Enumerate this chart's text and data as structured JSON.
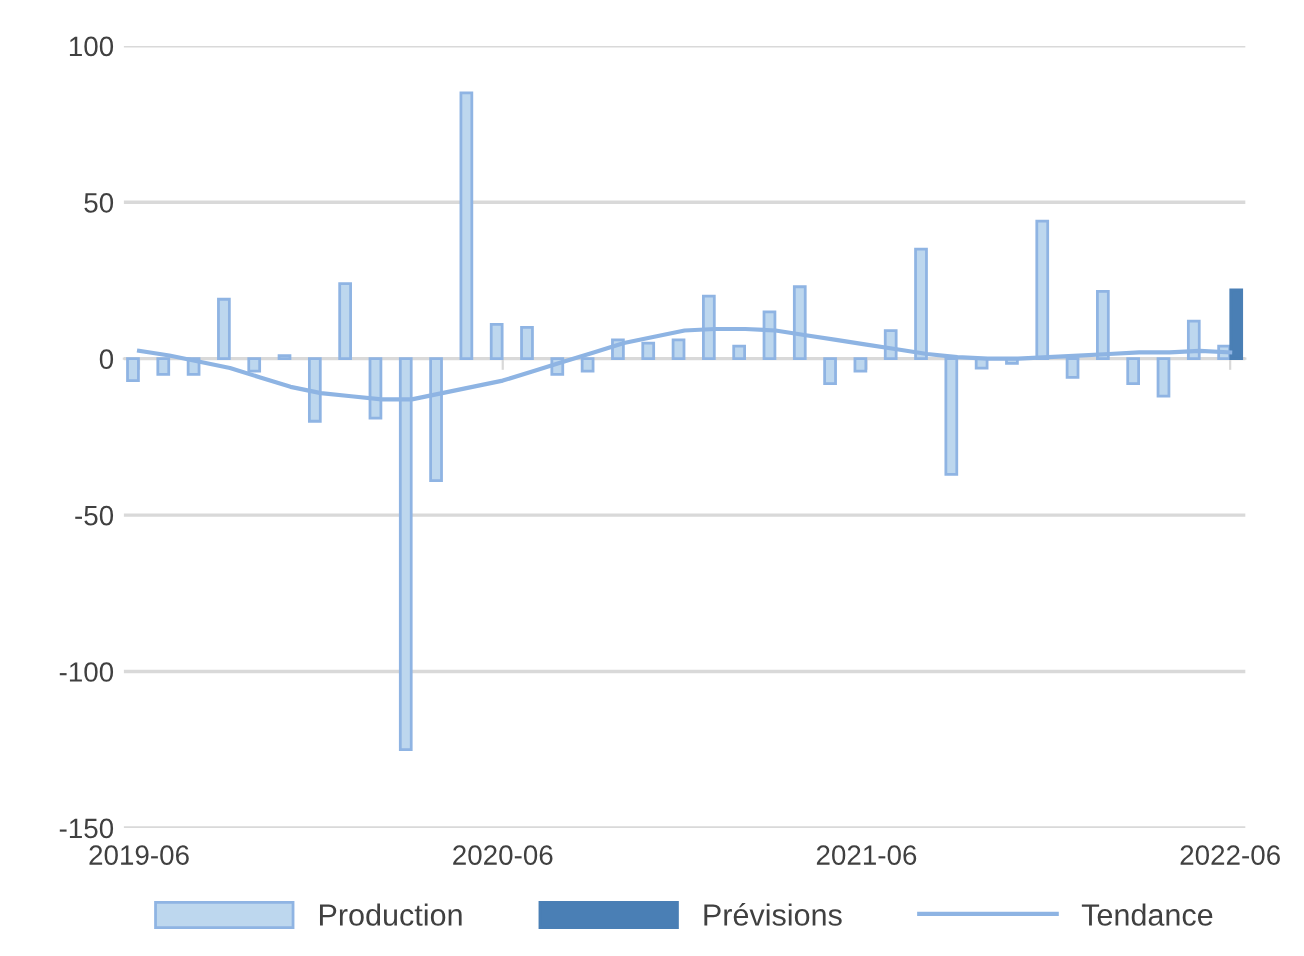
{
  "chart_data": {
    "type": "bar",
    "categories": [
      "2019-06",
      null,
      null,
      null,
      null,
      null,
      null,
      null,
      null,
      null,
      null,
      null,
      "2020-06",
      null,
      null,
      null,
      null,
      null,
      null,
      null,
      null,
      null,
      null,
      null,
      "2021-06",
      null,
      null,
      null,
      null,
      null,
      null,
      null,
      null,
      null,
      null,
      null,
      "2022-06"
    ],
    "series": [
      {
        "name": "Production",
        "color": "#bdd7ee",
        "values": [
          -7,
          -5,
          -5,
          19,
          -4,
          1,
          -20,
          24,
          -19,
          -125,
          -39,
          85,
          11,
          10,
          -5,
          -4,
          6,
          5,
          6,
          20,
          4,
          15,
          23,
          -8,
          -4,
          9,
          35,
          -37,
          -3,
          -1.5,
          44,
          -6,
          21.5,
          -8,
          -12,
          12,
          4
        ]
      },
      {
        "name": "Prévisions",
        "color": "#4a7fb5",
        "values": [
          null,
          null,
          null,
          null,
          null,
          null,
          null,
          null,
          null,
          null,
          null,
          null,
          null,
          null,
          null,
          null,
          null,
          null,
          null,
          null,
          null,
          null,
          null,
          null,
          null,
          null,
          null,
          null,
          null,
          null,
          null,
          null,
          null,
          null,
          null,
          null,
          22
        ]
      },
      {
        "name": "Tendance",
        "type": "line",
        "color": "#8eb4e3",
        "values": [
          2.5,
          1,
          -1,
          -3,
          -6,
          -9,
          -11,
          -12,
          -13,
          -13,
          -11,
          -9,
          -7,
          -4,
          -1,
          2,
          5,
          7,
          9,
          9.5,
          9.5,
          9,
          7.5,
          6,
          4.5,
          3,
          1.5,
          0.5,
          0,
          0,
          0.5,
          1,
          1.5,
          2,
          2,
          2.5,
          2
        ]
      }
    ],
    "ylim": [
      -150,
      100
    ],
    "yticks": [
      -150,
      -100,
      -50,
      0,
      50,
      100
    ],
    "grid": "y",
    "legend": "bottom"
  }
}
